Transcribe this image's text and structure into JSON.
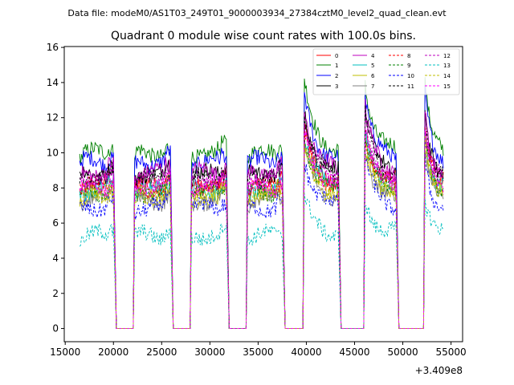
{
  "chart_data": {
    "type": "line",
    "suptitle": "Data file: modeM0/AS1T03_249T01_9000003934_27384cztM0_level2_quad_clean.evt",
    "title": "Quadrant 0 module wise count rates with 100.0s bins.",
    "xlabel": "",
    "ylabel": "",
    "x_offset_label": "+3.409e8",
    "xlim": [
      14900,
      56200
    ],
    "ylim": [
      -0.75,
      16.05
    ],
    "x_ticks": [
      15000,
      20000,
      25000,
      30000,
      35000,
      40000,
      45000,
      50000,
      55000
    ],
    "x_tick_labels": [
      "15000",
      "20000",
      "25000",
      "30000",
      "35000",
      "40000",
      "45000",
      "50000",
      "55000"
    ],
    "y_ticks": [
      0,
      2,
      4,
      6,
      8,
      10,
      12,
      14,
      16
    ],
    "y_tick_labels": [
      "0",
      "2",
      "4",
      "6",
      "8",
      "10",
      "12",
      "14",
      "16"
    ],
    "grid": false,
    "legend_position": "top-right",
    "legend_columns": 4,
    "segments": [
      {
        "start": 16500,
        "end": 20000,
        "flare": false
      },
      {
        "start": 22200,
        "end": 25900,
        "flare": false
      },
      {
        "start": 28100,
        "end": 31700,
        "flare": false
      },
      {
        "start": 33900,
        "end": 37500,
        "flare": false
      },
      {
        "start": 39800,
        "end": 43300,
        "flare": true
      },
      {
        "start": 46100,
        "end": 49300,
        "flare": true
      },
      {
        "start": 52300,
        "end": 54200,
        "flare": true
      }
    ],
    "gap_value": 0,
    "series": [
      {
        "name": "0",
        "color": "#ff0000",
        "dash": "solid",
        "mean": 8.2
      },
      {
        "name": "1",
        "color": "#008000",
        "dash": "solid",
        "mean": 10.0
      },
      {
        "name": "2",
        "color": "#0000ff",
        "dash": "solid",
        "mean": 9.5
      },
      {
        "name": "3",
        "color": "#000000",
        "dash": "solid",
        "mean": 8.8
      },
      {
        "name": "4",
        "color": "#bf00bf",
        "dash": "solid",
        "mean": 8.9
      },
      {
        "name": "5",
        "color": "#00bfbf",
        "dash": "solid",
        "mean": 7.9
      },
      {
        "name": "6",
        "color": "#bfbf00",
        "dash": "solid",
        "mean": 7.6
      },
      {
        "name": "7",
        "color": "#808080",
        "dash": "solid",
        "mean": 7.3
      },
      {
        "name": "8",
        "color": "#ff0000",
        "dash": "dashed",
        "mean": 8.0
      },
      {
        "name": "9",
        "color": "#008000",
        "dash": "dashed",
        "mean": 7.8
      },
      {
        "name": "10",
        "color": "#0000ff",
        "dash": "dashed",
        "mean": 6.9
      },
      {
        "name": "11",
        "color": "#000000",
        "dash": "dashed",
        "mean": 8.6
      },
      {
        "name": "12",
        "color": "#bf00bf",
        "dash": "dashed",
        "mean": 8.4
      },
      {
        "name": "13",
        "color": "#00bfbf",
        "dash": "dashed",
        "mean": 5.3
      },
      {
        "name": "14",
        "color": "#bfbf00",
        "dash": "dashed",
        "mean": 7.5
      },
      {
        "name": "15",
        "color": "#ff00ff",
        "dash": "dashed",
        "mean": 8.1
      }
    ]
  }
}
